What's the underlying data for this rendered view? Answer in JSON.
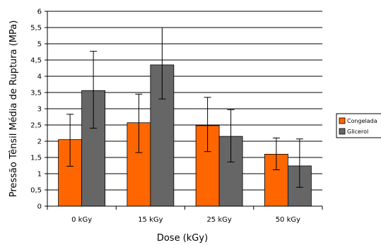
{
  "chart_data": {
    "type": "bar",
    "title": "",
    "xlabel": "Dose (kGy)",
    "ylabel": "Pressão Tênsil Média de Ruptura (MPa)",
    "categories": [
      "0 kGy",
      "15 kGy",
      "25 kGy",
      "50 kGy"
    ],
    "ylim": [
      0,
      6
    ],
    "yticks": [
      "0",
      "0,5",
      "1",
      "1,5",
      "2",
      "2,5",
      "3",
      "3,5",
      "4",
      "4,5",
      "5",
      "5,5",
      "6"
    ],
    "grid": true,
    "legend_position": "right",
    "series": [
      {
        "name": "Congelada",
        "color": "#ff6600",
        "values": [
          2.05,
          2.57,
          2.48,
          1.6
        ],
        "error_low": [
          1.23,
          1.65,
          1.68,
          1.12
        ],
        "error_high": [
          2.83,
          3.45,
          3.35,
          2.1
        ]
      },
      {
        "name": "Glicerol",
        "color": "#666666",
        "values": [
          3.56,
          4.35,
          2.15,
          1.24
        ],
        "error_low": [
          2.4,
          3.3,
          1.36,
          0.58
        ],
        "error_high": [
          4.77,
          5.5,
          2.97,
          2.07
        ]
      }
    ]
  }
}
